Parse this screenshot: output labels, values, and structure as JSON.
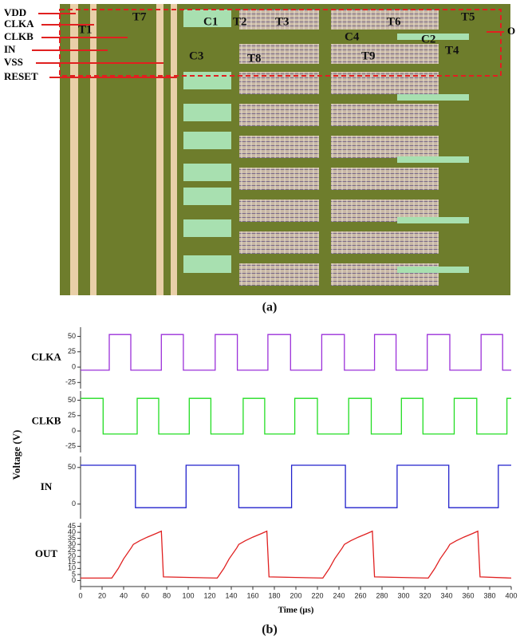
{
  "figure_a": {
    "labels": [
      "VDD",
      "CLKA",
      "CLKB",
      "IN",
      "VSS",
      "RESET",
      "T1",
      "T7",
      "C1",
      "T2",
      "T3",
      "T6",
      "T5",
      "C4",
      "C2",
      "O",
      "C3",
      "T8",
      "T9",
      "T4"
    ],
    "caption": "(a)"
  },
  "figure_b": {
    "ylabel": "Voltage (V)",
    "caption": "(b)"
  },
  "chart_data": [
    {
      "type": "line",
      "series": [
        {
          "name": "CLKA",
          "color": "#9b30d9",
          "x": [
            0,
            26.7,
            26.7,
            46.7,
            46.7,
            75,
            75,
            95.5,
            95.5,
            125,
            125,
            145.6,
            145.6,
            174,
            174,
            195,
            195,
            224,
            224,
            245,
            245,
            273,
            273,
            293,
            293,
            322,
            322,
            343,
            343,
            372,
            372,
            392,
            392,
            400
          ],
          "values": [
            -5,
            -5,
            53,
            53,
            -5,
            -5,
            53,
            53,
            -5,
            -5,
            53,
            53,
            -5,
            -5,
            53,
            53,
            -5,
            -5,
            53,
            53,
            -5,
            -5,
            53,
            53,
            -5,
            -5,
            53,
            53,
            -5,
            -5,
            53,
            53,
            -5,
            -5
          ]
        }
      ],
      "xlim": [
        0,
        400
      ],
      "ylim": [
        -35,
        65
      ],
      "yticks": [
        -25,
        0,
        25,
        50
      ]
    },
    {
      "type": "line",
      "series": [
        {
          "name": "CLKB",
          "color": "#22dd22",
          "x": [
            0,
            21,
            21,
            52.6,
            52.6,
            72.6,
            72.6,
            101,
            101,
            121,
            121,
            151,
            151,
            171,
            171,
            199,
            199,
            220,
            220,
            249,
            249,
            270,
            270,
            298,
            298,
            318,
            318,
            347,
            347,
            368,
            368,
            396,
            396,
            400
          ],
          "values": [
            53,
            53,
            -5,
            -5,
            53,
            53,
            -5,
            -5,
            53,
            53,
            -5,
            -5,
            53,
            53,
            -5,
            -5,
            53,
            53,
            -5,
            -5,
            53,
            53,
            -5,
            -5,
            53,
            53,
            -5,
            -5,
            53,
            53,
            -5,
            -5,
            53,
            53
          ]
        }
      ],
      "xlim": [
        0,
        400
      ],
      "ylim": [
        -35,
        65
      ],
      "yticks": [
        -25,
        0,
        25,
        50
      ]
    },
    {
      "type": "line",
      "series": [
        {
          "name": "IN",
          "color": "#2222cc",
          "x": [
            0,
            51,
            51,
            98,
            98,
            147,
            147,
            196,
            196,
            246,
            246,
            294,
            294,
            342,
            342,
            388,
            388,
            400
          ],
          "values": [
            53,
            53,
            -5,
            -5,
            53,
            53,
            -5,
            -5,
            53,
            53,
            -5,
            -5,
            53,
            53,
            -5,
            -5,
            53,
            53
          ]
        }
      ],
      "xlim": [
        0,
        400
      ],
      "ylim": [
        -20,
        65
      ],
      "yticks": [
        0,
        50
      ]
    },
    {
      "type": "line",
      "series": [
        {
          "name": "OUT",
          "color": "#e02020",
          "x": [
            0,
            29,
            35,
            40,
            47,
            49,
            55,
            62,
            70,
            75,
            77,
            127,
            133,
            138,
            145,
            147,
            153,
            160,
            168,
            173,
            175,
            225,
            231,
            236,
            243,
            245,
            251,
            258,
            266,
            271,
            273,
            323,
            329,
            334,
            341,
            343,
            349,
            356,
            364,
            369,
            371,
            400
          ],
          "values": [
            2,
            2,
            10,
            18,
            27,
            30,
            33,
            36,
            39,
            41,
            3,
            2,
            10,
            18,
            27,
            30,
            33,
            36,
            39,
            41,
            3,
            2,
            10,
            18,
            27,
            30,
            33,
            36,
            39,
            41,
            3,
            2,
            10,
            18,
            27,
            30,
            33,
            36,
            39,
            41,
            3,
            2
          ]
        }
      ],
      "xlim": [
        0,
        400
      ],
      "ylim": [
        -5,
        48
      ],
      "yticks": [
        0,
        5,
        10,
        15,
        20,
        25,
        30,
        35,
        40,
        45
      ],
      "xticks": [
        0,
        20,
        40,
        60,
        80,
        100,
        120,
        140,
        160,
        180,
        200,
        220,
        240,
        260,
        280,
        300,
        320,
        340,
        360,
        380,
        400
      ],
      "xlabel": "Time (μs)"
    }
  ]
}
